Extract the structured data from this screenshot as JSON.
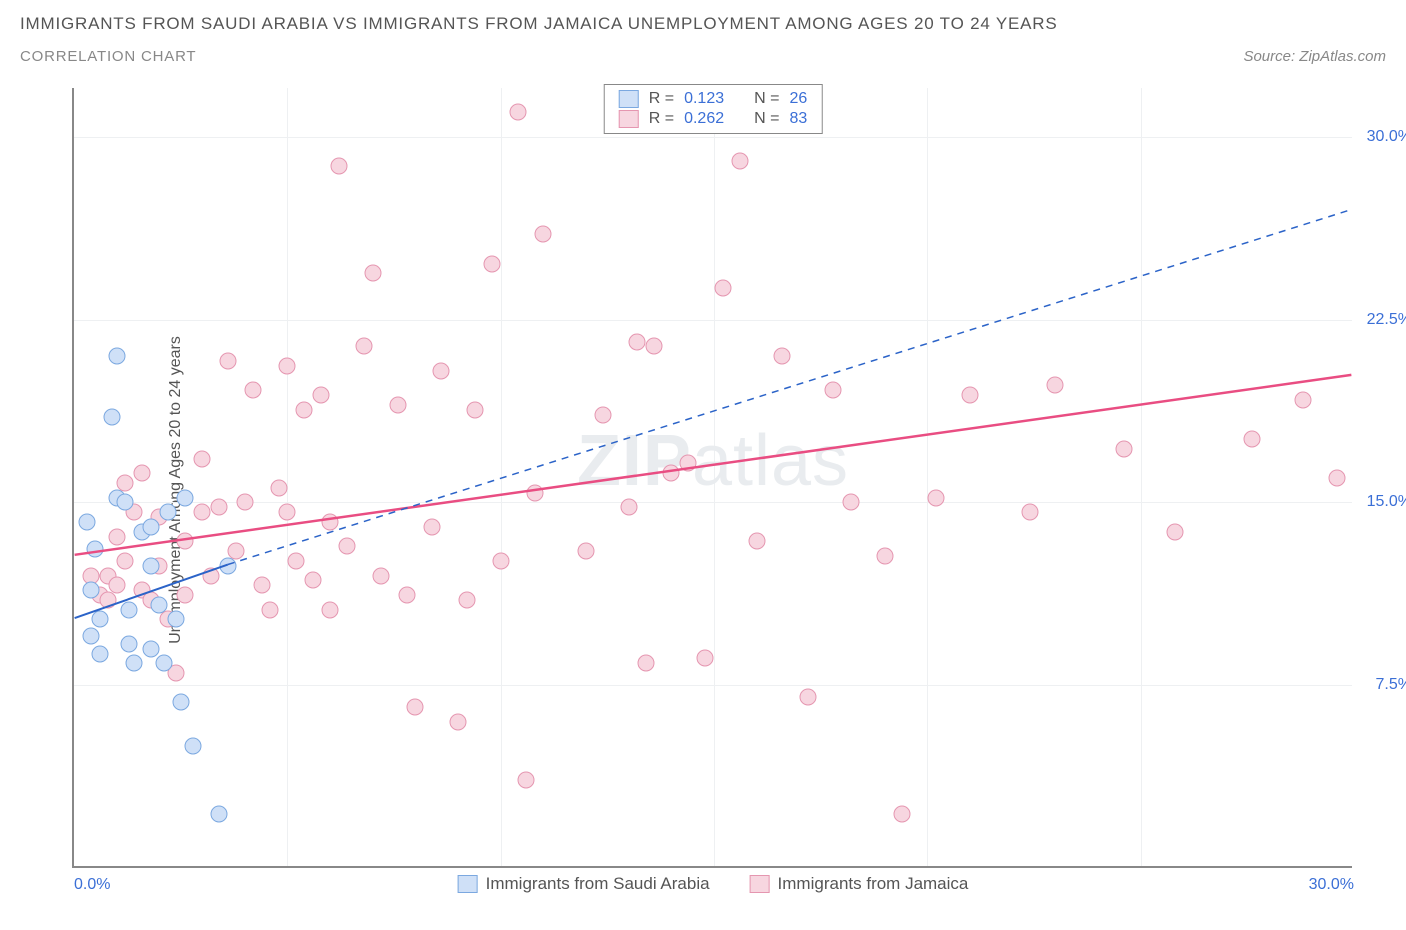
{
  "header": {
    "title": "IMMIGRANTS FROM SAUDI ARABIA VS IMMIGRANTS FROM JAMAICA UNEMPLOYMENT AMONG AGES 20 TO 24 YEARS",
    "subtitle": "CORRELATION CHART",
    "source": "Source: ZipAtlas.com"
  },
  "watermark": "ZIPatlas",
  "chart": {
    "type": "scatter",
    "y_axis_label": "Unemployment Among Ages 20 to 24 years",
    "xlim": [
      0,
      30
    ],
    "ylim": [
      0,
      32
    ],
    "x_ticks": [
      {
        "v": 0,
        "label": "0.0%",
        "pos": "left"
      },
      {
        "v": 30,
        "label": "30.0%",
        "pos": "right"
      }
    ],
    "y_ticks": [
      {
        "v": 7.5,
        "label": "7.5%"
      },
      {
        "v": 15,
        "label": "15.0%"
      },
      {
        "v": 22.5,
        "label": "22.5%"
      },
      {
        "v": 30,
        "label": "30.0%"
      }
    ],
    "grid_v_step": 5,
    "grid_h_vals": [
      7.5,
      15,
      22.5,
      30
    ],
    "grid_color": "#eef0f2",
    "background_color": "#ffffff",
    "marker_size": 17,
    "series": [
      {
        "name": "Immigrants from Saudi Arabia",
        "key": "saudi",
        "fill": "#cfe0f7",
        "stroke": "#7ba8e0",
        "R": "0.123",
        "N": "26",
        "trend": {
          "x1": 0,
          "y1": 10.2,
          "x2": 3.6,
          "y2": 12.4,
          "dashed_x2": 30,
          "dashed_y2": 27,
          "color": "#2b63c8",
          "width": 2
        },
        "points": [
          [
            0.3,
            14.2
          ],
          [
            0.4,
            11.4
          ],
          [
            0.4,
            9.5
          ],
          [
            0.6,
            8.8
          ],
          [
            0.6,
            10.2
          ],
          [
            0.5,
            13.1
          ],
          [
            1.0,
            21.0
          ],
          [
            0.9,
            18.5
          ],
          [
            1.0,
            15.2
          ],
          [
            1.2,
            15.0
          ],
          [
            1.3,
            10.6
          ],
          [
            1.3,
            9.2
          ],
          [
            1.4,
            8.4
          ],
          [
            1.6,
            13.8
          ],
          [
            1.8,
            14.0
          ],
          [
            1.8,
            12.4
          ],
          [
            1.8,
            9.0
          ],
          [
            2.0,
            10.8
          ],
          [
            2.1,
            8.4
          ],
          [
            2.2,
            14.6
          ],
          [
            2.4,
            10.2
          ],
          [
            2.5,
            6.8
          ],
          [
            2.6,
            15.2
          ],
          [
            2.8,
            5.0
          ],
          [
            3.4,
            2.2
          ],
          [
            3.6,
            12.4
          ]
        ]
      },
      {
        "name": "Immigrants from Jamaica",
        "key": "jamaica",
        "fill": "#f7d6e0",
        "stroke": "#e596b0",
        "R": "0.262",
        "N": "83",
        "trend": {
          "x1": 0,
          "y1": 12.8,
          "x2": 30,
          "y2": 20.2,
          "color": "#e94d82",
          "width": 2.5
        },
        "points": [
          [
            0.4,
            12.0
          ],
          [
            0.6,
            11.2
          ],
          [
            0.8,
            12.0
          ],
          [
            0.8,
            11.0
          ],
          [
            1.0,
            13.6
          ],
          [
            1.0,
            11.6
          ],
          [
            1.2,
            15.8
          ],
          [
            1.2,
            12.6
          ],
          [
            1.4,
            14.6
          ],
          [
            1.6,
            11.4
          ],
          [
            1.6,
            16.2
          ],
          [
            1.8,
            11.0
          ],
          [
            2.0,
            12.4
          ],
          [
            2.0,
            14.4
          ],
          [
            2.2,
            10.2
          ],
          [
            2.4,
            8.0
          ],
          [
            2.6,
            11.2
          ],
          [
            2.6,
            13.4
          ],
          [
            3.0,
            14.6
          ],
          [
            3.0,
            16.8
          ],
          [
            3.2,
            12.0
          ],
          [
            3.4,
            14.8
          ],
          [
            3.6,
            20.8
          ],
          [
            3.8,
            13.0
          ],
          [
            4.0,
            15.0
          ],
          [
            4.2,
            19.6
          ],
          [
            4.4,
            11.6
          ],
          [
            4.6,
            10.6
          ],
          [
            4.8,
            15.6
          ],
          [
            5.0,
            20.6
          ],
          [
            5.0,
            14.6
          ],
          [
            5.2,
            12.6
          ],
          [
            5.4,
            18.8
          ],
          [
            5.6,
            11.8
          ],
          [
            5.8,
            19.4
          ],
          [
            6.0,
            14.2
          ],
          [
            6.0,
            10.6
          ],
          [
            6.2,
            28.8
          ],
          [
            6.4,
            13.2
          ],
          [
            6.8,
            21.4
          ],
          [
            7.0,
            24.4
          ],
          [
            7.2,
            12.0
          ],
          [
            7.6,
            19.0
          ],
          [
            7.8,
            11.2
          ],
          [
            8.0,
            6.6
          ],
          [
            8.4,
            14.0
          ],
          [
            8.6,
            20.4
          ],
          [
            9.0,
            6.0
          ],
          [
            9.2,
            11.0
          ],
          [
            9.4,
            18.8
          ],
          [
            9.8,
            24.8
          ],
          [
            10.0,
            12.6
          ],
          [
            10.4,
            31.0
          ],
          [
            10.6,
            3.6
          ],
          [
            10.8,
            15.4
          ],
          [
            11.0,
            26.0
          ],
          [
            12.0,
            13.0
          ],
          [
            12.4,
            18.6
          ],
          [
            13.0,
            14.8
          ],
          [
            13.2,
            21.6
          ],
          [
            13.4,
            8.4
          ],
          [
            13.6,
            21.4
          ],
          [
            14.0,
            16.2
          ],
          [
            14.4,
            16.6
          ],
          [
            14.8,
            8.6
          ],
          [
            15.2,
            23.8
          ],
          [
            15.6,
            29.0
          ],
          [
            16.0,
            13.4
          ],
          [
            16.6,
            21.0
          ],
          [
            17.2,
            7.0
          ],
          [
            17.8,
            19.6
          ],
          [
            18.2,
            15.0
          ],
          [
            19.0,
            12.8
          ],
          [
            19.4,
            2.2
          ],
          [
            20.2,
            15.2
          ],
          [
            21.0,
            19.4
          ],
          [
            22.4,
            14.6
          ],
          [
            23.0,
            19.8
          ],
          [
            24.6,
            17.2
          ],
          [
            25.8,
            13.8
          ],
          [
            27.6,
            17.6
          ],
          [
            28.8,
            19.2
          ],
          [
            29.6,
            16.0
          ]
        ]
      }
    ],
    "top_legend": {
      "r_label": "R =",
      "n_label": "N ="
    },
    "bottom_legend_labels": [
      "Immigrants from Saudi Arabia",
      "Immigrants from Jamaica"
    ]
  }
}
